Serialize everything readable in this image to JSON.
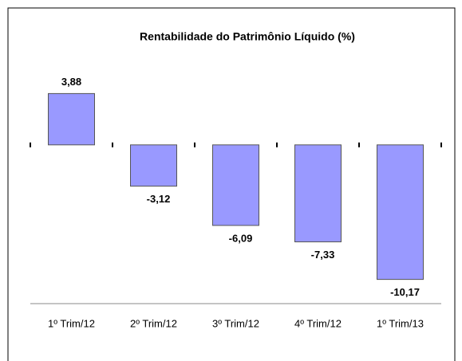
{
  "chart_data": {
    "type": "bar",
    "title": "Rentabilidade do Patrimônio Líquido (%)",
    "categories": [
      "1º Trim/12",
      "2º Trim/12",
      "3º Trim/12",
      "4º Trim/12",
      "1º Trim/13"
    ],
    "values": [
      3.88,
      -3.12,
      -6.09,
      -7.33,
      -10.17
    ],
    "value_labels": [
      "3,88",
      "-3,12",
      "-6,09",
      "-7,33",
      "-10,17"
    ],
    "color": "#9999ff",
    "ylim": [
      -12,
      4
    ]
  }
}
